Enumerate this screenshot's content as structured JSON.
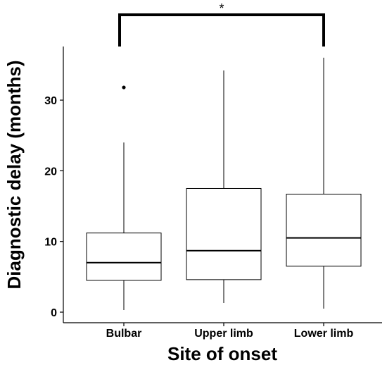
{
  "chart_data": {
    "type": "box",
    "categories": [
      "Bulbar",
      "Upper limb",
      "Lower limb"
    ],
    "boxes": [
      {
        "category": "Bulbar",
        "whisker_low": 0.3,
        "q1": 4.5,
        "median": 7.0,
        "q3": 11.2,
        "whisker_high": 24.0,
        "outliers": [
          31.8
        ]
      },
      {
        "category": "Upper limb",
        "whisker_low": 1.3,
        "q1": 4.6,
        "median": 8.7,
        "q3": 17.5,
        "whisker_high": 34.2,
        "outliers": []
      },
      {
        "category": "Lower limb",
        "whisker_low": 0.5,
        "q1": 6.5,
        "median": 10.5,
        "q3": 16.7,
        "whisker_high": 36.0,
        "outliers": []
      }
    ],
    "xlabel": "Site of onset",
    "ylabel": "Diagnostic delay (months)",
    "ylim": [
      -1.5,
      38
    ],
    "yticks": [
      0,
      10,
      20,
      30
    ],
    "grid": false,
    "annotation": {
      "from": "Bulbar",
      "to": "Lower limb",
      "label": "*"
    }
  }
}
